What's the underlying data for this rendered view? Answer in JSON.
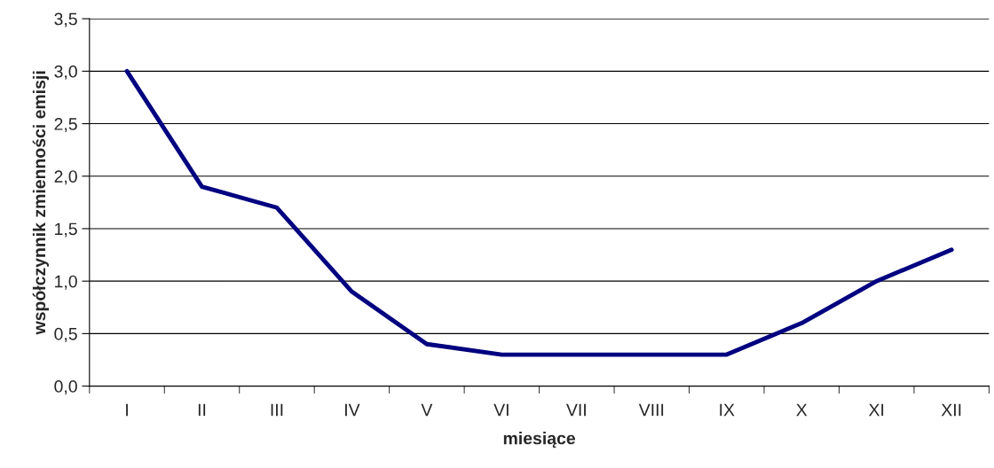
{
  "chart_data": {
    "type": "line",
    "xlabel": "miesiące",
    "ylabel": "współczynnik zmienności emisji",
    "categories": [
      "I",
      "II",
      "III",
      "IV",
      "V",
      "VI",
      "VII",
      "VIII",
      "IX",
      "X",
      "XI",
      "XII"
    ],
    "series": [
      {
        "color": "#000080",
        "values": [
          3.0,
          1.9,
          1.7,
          0.9,
          0.4,
          0.3,
          0.3,
          0.3,
          0.3,
          0.6,
          1.0,
          1.3
        ]
      }
    ],
    "ylim": [
      0,
      3.5
    ],
    "yticks": [
      {
        "value": 0,
        "label": "0,0"
      },
      {
        "value": 0.5,
        "label": "0,5"
      },
      {
        "value": 1,
        "label": "1,0"
      },
      {
        "value": 1.5,
        "label": "1,5"
      },
      {
        "value": 2,
        "label": "2,0"
      },
      {
        "value": 2.5,
        "label": "2,5"
      },
      {
        "value": 3,
        "label": "3,0"
      },
      {
        "value": 3.5,
        "label": "3,5"
      }
    ],
    "grid": "y",
    "marker": "none",
    "line_style": "solid",
    "legend": false
  }
}
